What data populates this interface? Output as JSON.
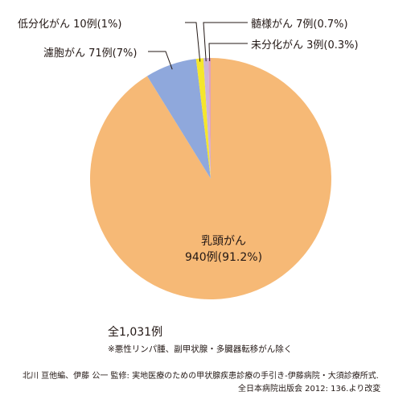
{
  "chart_data": {
    "type": "pie",
    "slices": [
      {
        "label": "乳頭がん",
        "count": "940例",
        "percent": "(91.2%)",
        "value": 940,
        "color": "#f6b976"
      },
      {
        "label": "濾胞がん",
        "count": "71例",
        "percent": "(7%)",
        "value": 71,
        "color": "#8fa8dc"
      },
      {
        "label": "低分化がん",
        "count": "10例",
        "percent": "(1%)",
        "value": 10,
        "color": "#f5e62c"
      },
      {
        "label": "髄様がん",
        "count": "7例",
        "percent": "(0.7%)",
        "value": 7,
        "color": "#cdb6d8"
      },
      {
        "label": "未分化がん",
        "count": "3例",
        "percent": "(0.3%)",
        "value": 3,
        "color": "#e1a0bc"
      }
    ]
  },
  "total": "全1,031例",
  "note": "※悪性リンパ腫、副甲状腺・多臓器転移がん除く",
  "source": {
    "line1": "北川 亘他編、伊藤 公一 監修: 実地医療のための甲状腺疾患診療の手引き-伊藤病院・大須診療所式.",
    "line2": "全日本病院出版会 2012: 136.より改変"
  }
}
